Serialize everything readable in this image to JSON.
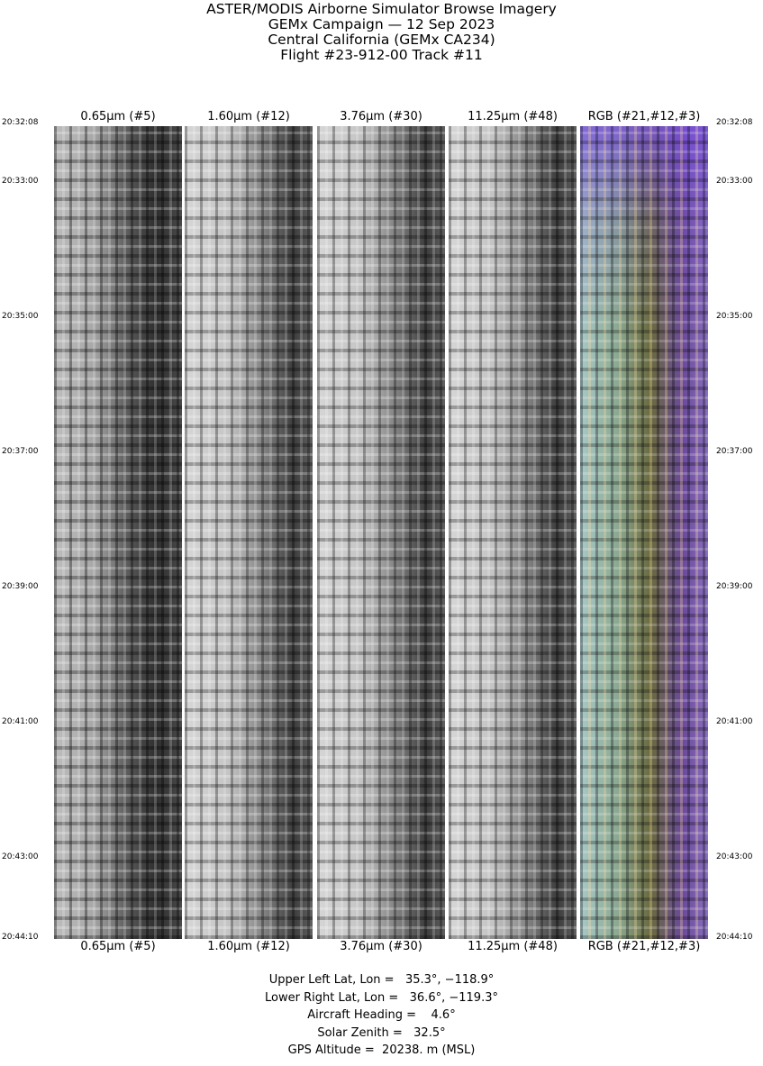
{
  "title_lines": [
    "ASTER/MODIS Airborne Simulator Browse Imagery",
    "GEMx Campaign — 12 Sep 2023",
    "Central California (GEMx CA234)",
    "Flight #23-912-00 Track #11"
  ],
  "panels": [
    {
      "label": "0.65µm (#5)",
      "kind": "grayscale"
    },
    {
      "label": "1.60µm (#12)",
      "kind": "grayscale"
    },
    {
      "label": "3.76µm (#30)",
      "kind": "grayscale"
    },
    {
      "label": "11.25µm (#48)",
      "kind": "grayscale"
    },
    {
      "label": "RGB (#21,#12,#3)",
      "kind": "false-color"
    }
  ],
  "time_ticks": [
    "20:32:08",
    "20:33:00",
    "20:35:00",
    "20:37:00",
    "20:39:00",
    "20:41:00",
    "20:43:00",
    "20:44:10"
  ],
  "info_lines": [
    "Upper Left Lat, Lon =   35.3°, −118.9°",
    "Lower Right Lat, Lon =   36.6°, −119.3°",
    "Aircraft Heading =    4.6°",
    "Solar Zenith =   32.5°",
    "GPS Altitude =  20238. m (MSL)"
  ]
}
